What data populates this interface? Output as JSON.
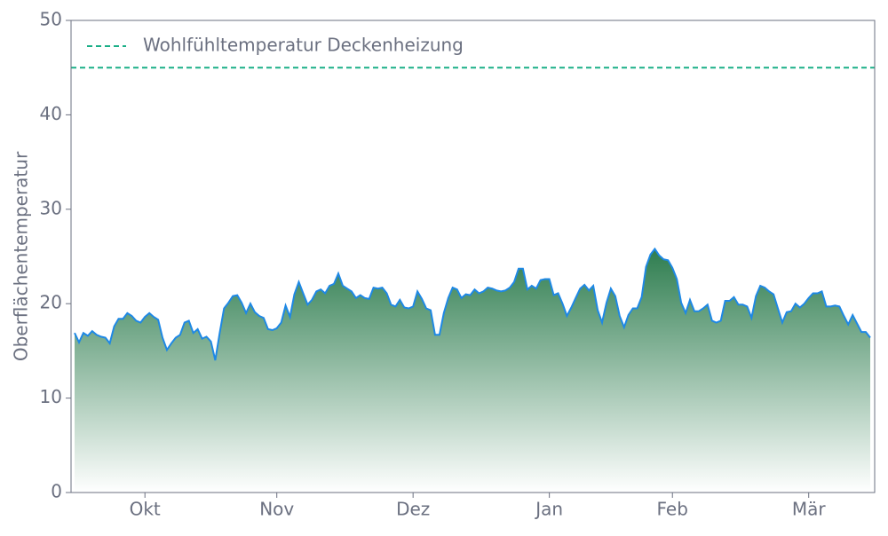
{
  "chart_data": {
    "type": "area",
    "ylabel": "Oberflächentemperatur",
    "categories": [
      null,
      null,
      null,
      null,
      null,
      null,
      null,
      null,
      null,
      null,
      null,
      null,
      null,
      null,
      null,
      null,
      "Okt",
      null,
      null,
      null,
      null,
      null,
      null,
      null,
      null,
      null,
      null,
      null,
      null,
      null,
      null,
      null,
      null,
      null,
      null,
      null,
      null,
      null,
      null,
      null,
      null,
      null,
      null,
      null,
      null,
      null,
      "Nov",
      null,
      null,
      null,
      null,
      null,
      null,
      null,
      null,
      null,
      null,
      null,
      null,
      null,
      null,
      null,
      null,
      null,
      null,
      null,
      null,
      null,
      null,
      null,
      null,
      null,
      null,
      null,
      null,
      null,
      null,
      "Dez",
      null,
      null,
      null,
      null,
      null,
      null,
      null,
      null,
      null,
      null,
      null,
      null,
      null,
      null,
      null,
      null,
      null,
      null,
      null,
      null,
      null,
      null,
      null,
      null,
      null,
      null,
      null,
      null,
      null,
      null,
      "Jan",
      null,
      null,
      null,
      null,
      null,
      null,
      null,
      null,
      null,
      null,
      null,
      null,
      null,
      null,
      null,
      null,
      null,
      null,
      null,
      null,
      null,
      null,
      null,
      null,
      null,
      null,
      null,
      "Feb",
      null,
      null,
      null,
      null,
      null,
      null,
      null,
      null,
      null,
      null,
      null,
      null,
      null,
      null,
      null,
      null,
      null,
      null,
      null,
      null,
      null,
      null,
      null,
      null,
      null,
      null,
      null,
      null,
      null,
      null,
      "Mär",
      null,
      null,
      null,
      null,
      null,
      null,
      null,
      null,
      null,
      null,
      null,
      null,
      null,
      null
    ],
    "values": [
      16.9,
      15.9,
      16.9,
      16.6,
      17.1,
      16.7,
      16.5,
      16.4,
      15.8,
      17.6,
      18.4,
      18.4,
      19.0,
      18.7,
      18.2,
      18.0,
      18.6,
      19.0,
      18.6,
      18.3,
      16.4,
      15.1,
      15.8,
      16.4,
      16.7,
      18.0,
      18.2,
      16.9,
      17.3,
      16.3,
      16.5,
      16.0,
      14.0,
      16.9,
      19.5,
      20.1,
      20.8,
      20.9,
      20.1,
      19.0,
      20.0,
      19.1,
      18.7,
      18.5,
      17.3,
      17.2,
      17.4,
      18.0,
      19.8,
      18.6,
      21.0,
      22.3,
      21.1,
      19.9,
      20.4,
      21.3,
      21.5,
      21.1,
      21.9,
      22.1,
      23.2,
      21.9,
      21.6,
      21.3,
      20.6,
      20.9,
      20.6,
      20.5,
      21.7,
      21.6,
      21.7,
      21.1,
      19.9,
      19.7,
      20.4,
      19.6,
      19.5,
      19.7,
      21.3,
      20.5,
      19.5,
      19.3,
      16.7,
      16.7,
      19.0,
      20.6,
      21.7,
      21.5,
      20.6,
      21.0,
      20.9,
      21.5,
      21.1,
      21.3,
      21.7,
      21.6,
      21.4,
      21.3,
      21.4,
      21.7,
      22.3,
      23.7,
      23.7,
      21.5,
      21.9,
      21.6,
      22.5,
      22.6,
      22.6,
      20.9,
      21.1,
      20.0,
      18.7,
      19.6,
      20.6,
      21.6,
      22.0,
      21.4,
      21.9,
      19.3,
      18.0,
      20.1,
      21.6,
      20.8,
      18.7,
      17.5,
      18.8,
      19.5,
      19.5,
      20.7,
      23.9,
      25.2,
      25.8,
      25.1,
      24.7,
      24.6,
      23.8,
      22.6,
      20.1,
      19.0,
      20.4,
      19.2,
      19.2,
      19.5,
      19.9,
      18.2,
      18.0,
      18.2,
      20.3,
      20.3,
      20.7,
      19.9,
      19.9,
      19.7,
      18.5,
      20.8,
      21.9,
      21.7,
      21.3,
      21.0,
      19.5,
      18.0,
      19.1,
      19.2,
      20.0,
      19.6,
      20.0,
      20.6,
      21.1,
      21.1,
      21.3,
      19.7,
      19.7,
      19.8,
      19.7,
      18.7,
      17.8,
      18.8,
      17.9,
      17.0,
      17.0,
      16.4
    ],
    "line_color": "#1e88e5",
    "fill_gradient": [
      "#2e7d4f",
      "#ffffff"
    ],
    "reference_line": {
      "name": "Wohlfühltemperatur Deckenheizung",
      "value": 45,
      "color": "#1aaf87"
    },
    "ylim": [
      0,
      50
    ],
    "yticks": [
      0,
      10,
      20,
      30,
      40,
      50
    ],
    "legend": "upper left"
  }
}
